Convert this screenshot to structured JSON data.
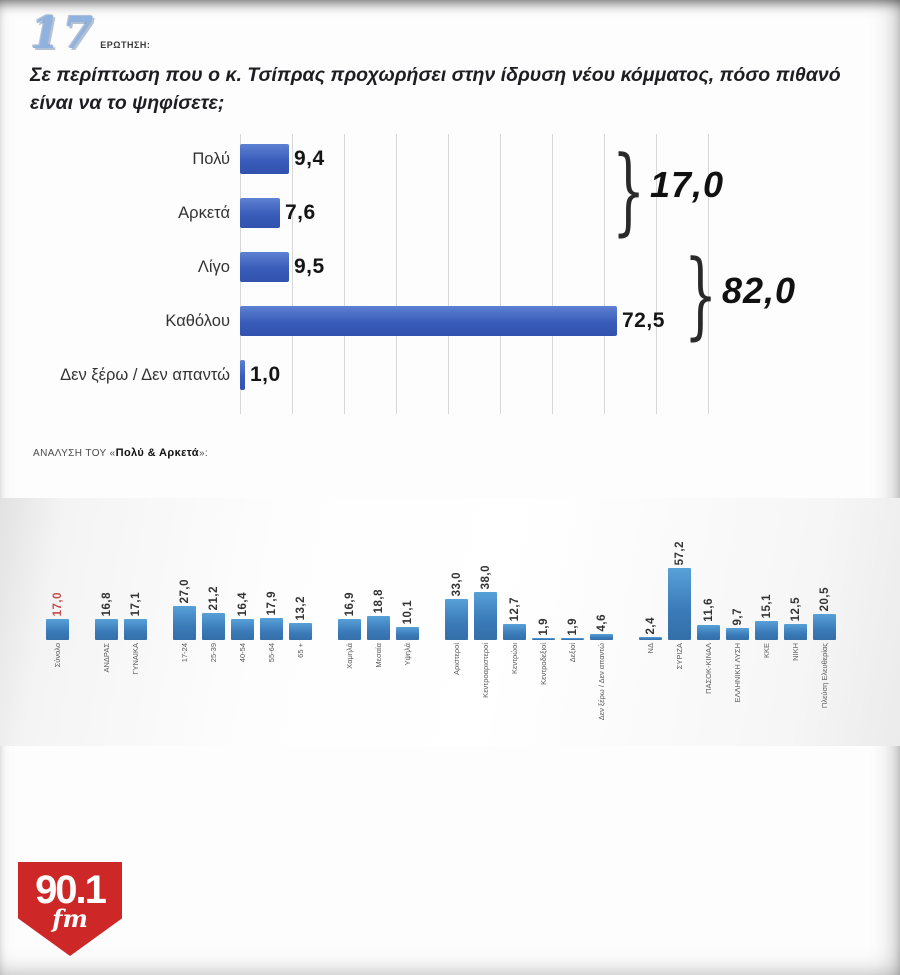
{
  "header": {
    "number": "17",
    "number_color": "#8fb3de",
    "label": "ΕΡΩΤΗΣΗ:",
    "question": "Σε περίπτωση που ο κ. Τσίπρας προχωρήσει στην ίδρυση νέου κόμματος, πόσο πιθανό είναι να το ψηφίσετε;"
  },
  "analysis": {
    "prefix": "ΑΝΑΛΥΣΗ ΤΟΥ «",
    "bold": "Πολύ & Αρκετά",
    "suffix": "»:"
  },
  "logo": {
    "number": "90.1",
    "band": "fm",
    "color": "#ce2727"
  },
  "chart_data": [
    {
      "type": "bar",
      "orientation": "horizontal",
      "bar_color": "#3a5cba",
      "grid": true,
      "xlim": [
        0,
        90
      ],
      "gridline_step": 10,
      "rows": [
        {
          "label": "Πολύ",
          "value": 9.4,
          "value_label": "9,4"
        },
        {
          "label": "Αρκετά",
          "value": 7.6,
          "value_label": "7,6"
        },
        {
          "label": "Λίγο",
          "value": 9.5,
          "value_label": "9,5"
        },
        {
          "label": "Καθόλου",
          "value": 72.5,
          "value_label": "72,5"
        },
        {
          "label": "Δεν ξέρω / Δεν απαντώ",
          "value": 1.0,
          "value_label": "1,0"
        }
      ],
      "brackets": [
        {
          "label": "17,0",
          "covers": [
            "Πολύ",
            "Αρκετά"
          ]
        },
        {
          "label": "82,0",
          "covers": [
            "Λίγο",
            "Καθόλου"
          ]
        }
      ]
    },
    {
      "type": "bar",
      "orientation": "vertical",
      "title": "ΑΝΑΛΥΣΗ ΤΟΥ «Πολύ & Αρκετά»",
      "bar_color": "#3d85c6",
      "highlight_color": "#c84b4b",
      "clusters": [
        {
          "bars": [
            {
              "label": "Σύνολο",
              "value": 17.0,
              "value_label": "17,0",
              "highlight": true
            }
          ]
        },
        {
          "bars": [
            {
              "label": "ΑΝΔΡΑΣ",
              "value": 16.8,
              "value_label": "16,8"
            },
            {
              "label": "ΓΥΝΑΙΚΑ",
              "value": 17.1,
              "value_label": "17,1"
            }
          ]
        },
        {
          "bars": [
            {
              "label": "17-24",
              "value": 27.0,
              "value_label": "27,0"
            },
            {
              "label": "25-39",
              "value": 21.2,
              "value_label": "21,2"
            },
            {
              "label": "40-54",
              "value": 16.4,
              "value_label": "16,4"
            },
            {
              "label": "55-64",
              "value": 17.9,
              "value_label": "17,9"
            },
            {
              "label": "65 +",
              "value": 13.2,
              "value_label": "13,2"
            }
          ]
        },
        {
          "bars": [
            {
              "label": "Χαμηλά",
              "value": 16.9,
              "value_label": "16,9"
            },
            {
              "label": "Μεσαία",
              "value": 18.8,
              "value_label": "18,8"
            },
            {
              "label": "Υψηλά",
              "value": 10.1,
              "value_label": "10,1"
            }
          ]
        },
        {
          "bars": [
            {
              "label": "Αριστεροί",
              "value": 33.0,
              "value_label": "33,0"
            },
            {
              "label": "Κεντροαριστεροί",
              "value": 38.0,
              "value_label": "38,0"
            },
            {
              "label": "Κεντρώοι",
              "value": 12.7,
              "value_label": "12,7"
            },
            {
              "label": "Κεντροδεξιοί",
              "value": 1.9,
              "value_label": "1,9"
            },
            {
              "label": "Δεξιοί",
              "value": 1.9,
              "value_label": "1,9"
            },
            {
              "label": "Δεν ξέρω / Δεν απαντώ",
              "value": 4.6,
              "value_label": "4,6"
            }
          ]
        },
        {
          "bars": [
            {
              "label": "ΝΔ",
              "value": 2.4,
              "value_label": "2,4"
            },
            {
              "label": "ΣΥΡΙΖΑ",
              "value": 57.2,
              "value_label": "57,2"
            },
            {
              "label": "ΠΑΣΟΚ-ΚΙΝΑΛ",
              "value": 11.6,
              "value_label": "11,6"
            },
            {
              "label": "ΕΛΛΗΝΙΚΗ ΛΥΣΗ",
              "value": 9.7,
              "value_label": "9,7"
            },
            {
              "label": "ΚΚΕ",
              "value": 15.1,
              "value_label": "15,1"
            },
            {
              "label": "ΝΙΚΗ",
              "value": 12.5,
              "value_label": "12,5"
            },
            {
              "label": "Πλεύση Ελευθερίας",
              "value": 20.5,
              "value_label": "20,5"
            }
          ]
        }
      ]
    }
  ]
}
